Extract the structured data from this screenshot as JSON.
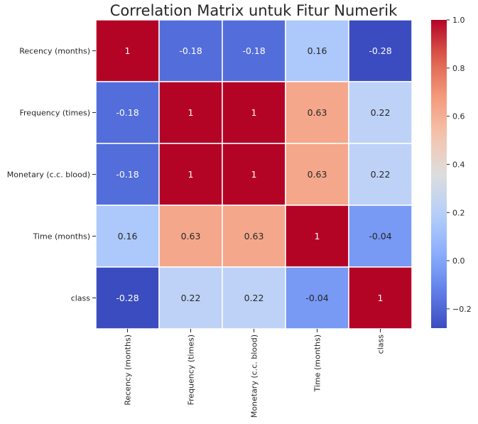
{
  "chart_data": {
    "type": "heatmap",
    "title": "Correlation Matrix untuk Fitur Numerik",
    "row_labels": [
      "Recency (months)",
      "Frequency (times)",
      "Monetary (c.c. blood)",
      "Time (months)",
      "class"
    ],
    "col_labels": [
      "Recency (months)",
      "Frequency (times)",
      "Monetary (c.c. blood)",
      "Time (months)",
      "class"
    ],
    "values": [
      [
        1,
        -0.18,
        -0.18,
        0.16,
        -0.28
      ],
      [
        -0.18,
        1,
        1,
        0.63,
        0.22
      ],
      [
        -0.18,
        1,
        1,
        0.63,
        0.22
      ],
      [
        0.16,
        0.63,
        0.63,
        1,
        -0.04
      ],
      [
        -0.28,
        0.22,
        0.22,
        -0.04,
        1
      ]
    ],
    "cell_labels": [
      [
        "1",
        "-0.18",
        "-0.18",
        "0.16",
        "-0.28"
      ],
      [
        "-0.18",
        "1",
        "1",
        "0.63",
        "0.22"
      ],
      [
        "-0.18",
        "1",
        "1",
        "0.63",
        "0.22"
      ],
      [
        "0.16",
        "0.63",
        "0.63",
        "1",
        "-0.04"
      ],
      [
        "-0.28",
        "0.22",
        "0.22",
        "-0.04",
        "1"
      ]
    ],
    "colormap": "coolwarm",
    "colorbar": {
      "min": -0.28,
      "max": 1.0,
      "ticks": [
        -0.2,
        0.0,
        0.2,
        0.4,
        0.6,
        0.8,
        1.0
      ],
      "tick_labels": [
        "−0.2",
        "0.0",
        "0.2",
        "0.4",
        "0.6",
        "0.8",
        "1.0"
      ],
      "placement": "right"
    },
    "grid": true,
    "grid_color": "#ffffff"
  }
}
